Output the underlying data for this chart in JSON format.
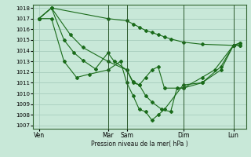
{
  "title": "Pression niveau de la mer( hPa )",
  "bg_color": "#c8e8d8",
  "line_color": "#1a6b1a",
  "grid_color": "#a0c8b8",
  "ylim": [
    1007,
    1018
  ],
  "yticks": [
    1007,
    1008,
    1009,
    1010,
    1011,
    1012,
    1013,
    1014,
    1015,
    1016,
    1017,
    1018
  ],
  "day_labels": [
    "Ven",
    "Mar",
    "Sam",
    "Dim",
    "Lun"
  ],
  "day_x": [
    0,
    5.5,
    7.0,
    11.5,
    15.5
  ],
  "series": [
    {
      "x": [
        0,
        1,
        5.5,
        7.0,
        7.5,
        8.0,
        8.5,
        9.0,
        9.5,
        10.0,
        10.5,
        11.5,
        13.0,
        15.5,
        16.0
      ],
      "y": [
        1017,
        1018,
        1017,
        1016.8,
        1016.5,
        1016.2,
        1015.9,
        1015.7,
        1015.5,
        1015.3,
        1015.1,
        1014.8,
        1014.6,
        1014.5,
        1014.5
      ]
    },
    {
      "x": [
        0,
        1,
        2.5,
        3.5,
        5.5,
        7.0,
        7.5,
        8.0,
        8.5,
        9.0,
        9.5,
        10.0,
        11.5,
        13.0,
        14.0,
        15.5,
        16.0
      ],
      "y": [
        1017,
        1018,
        1015.5,
        1014.3,
        1013.0,
        1012.2,
        1011.0,
        1010.8,
        1011.5,
        1012.2,
        1012.5,
        1010.5,
        1010.5,
        1011.5,
        1012.2,
        1014.5,
        1014.5
      ]
    },
    {
      "x": [
        0,
        1,
        2.0,
        2.8,
        3.5,
        4.5,
        5.5,
        6.0,
        7.0,
        7.5,
        8.0,
        8.5,
        9.0,
        9.8,
        10.5,
        11.0,
        11.5,
        13.0,
        14.5,
        15.5,
        16.0
      ],
      "y": [
        1017,
        1018,
        1015.0,
        1013.8,
        1013.1,
        1012.3,
        1013.8,
        1013.0,
        1012.2,
        1011.1,
        1010.8,
        1009.8,
        1009.2,
        1008.5,
        1008.3,
        1010.5,
        1010.5,
        1011.0,
        1012.5,
        1014.5,
        1014.7
      ]
    },
    {
      "x": [
        0,
        1,
        2.0,
        3.0,
        4.0,
        5.5,
        6.5,
        7.0,
        7.5,
        8.0,
        8.5,
        9.0,
        9.5,
        10.0,
        11.5,
        13.0,
        14.5,
        15.5,
        16.0
      ],
      "y": [
        1017,
        1017,
        1013.0,
        1011.5,
        1011.8,
        1012.2,
        1013.0,
        1011.0,
        1009.8,
        1008.5,
        1008.3,
        1007.5,
        1008.0,
        1008.5,
        1010.8,
        1011.0,
        1012.2,
        1014.5,
        1014.7
      ]
    }
  ],
  "vlines_x": [
    5.5,
    7.0,
    11.5,
    15.5
  ],
  "xlim": [
    -0.5,
    16.5
  ]
}
